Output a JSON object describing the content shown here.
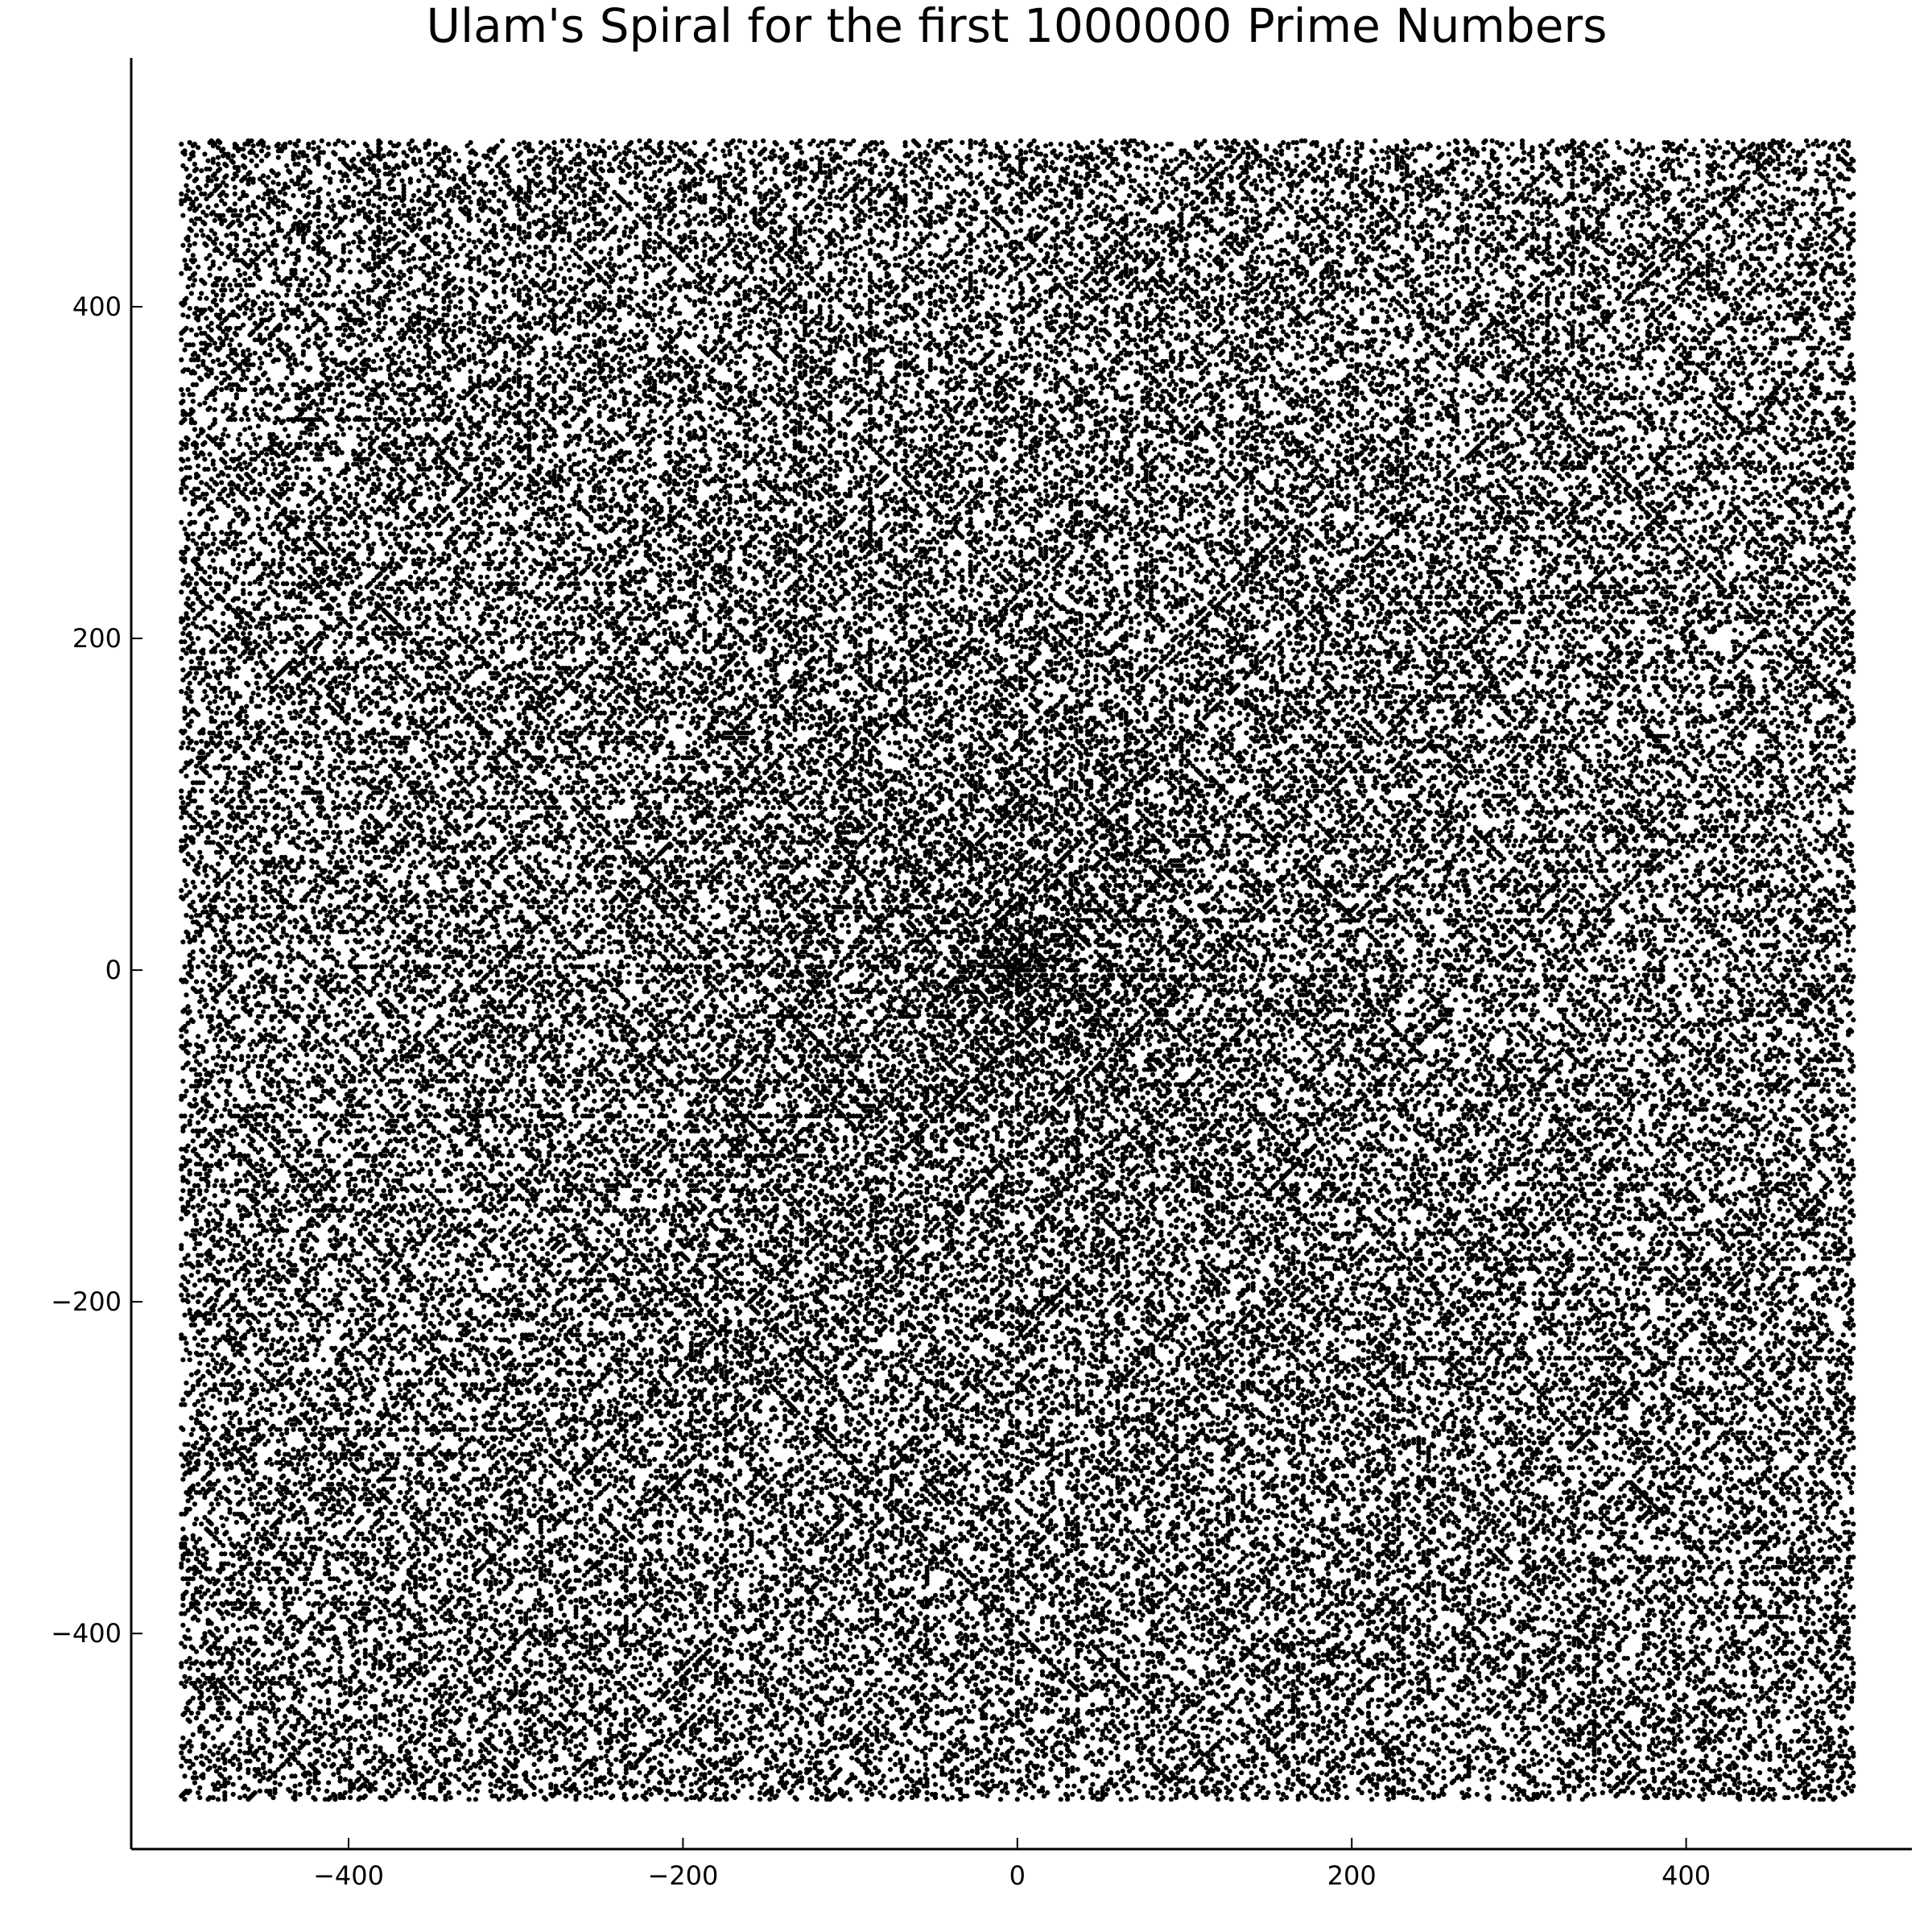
{
  "chart_data": {
    "type": "scatter",
    "title": "Ulam's Spiral for the first 1000000 Prime Numbers",
    "xlabel": "",
    "ylabel": "",
    "xlim": [
      -530,
      535
    ],
    "ylim": [
      -530,
      550
    ],
    "x_ticks": [
      -400,
      -200,
      0,
      200,
      400
    ],
    "y_ticks": [
      -400,
      -200,
      0,
      200,
      400
    ],
    "x_tick_labels": [
      "−400",
      "−200",
      "0",
      "200",
      "400"
    ],
    "y_tick_labels": [
      "−400",
      "−200",
      "0",
      "200",
      "400"
    ],
    "grid": true,
    "legend": "none",
    "marker_color": "#000000",
    "point_generation": {
      "rule": "primes placed on the Ulam spiral",
      "prime_count": 1000000
    }
  }
}
